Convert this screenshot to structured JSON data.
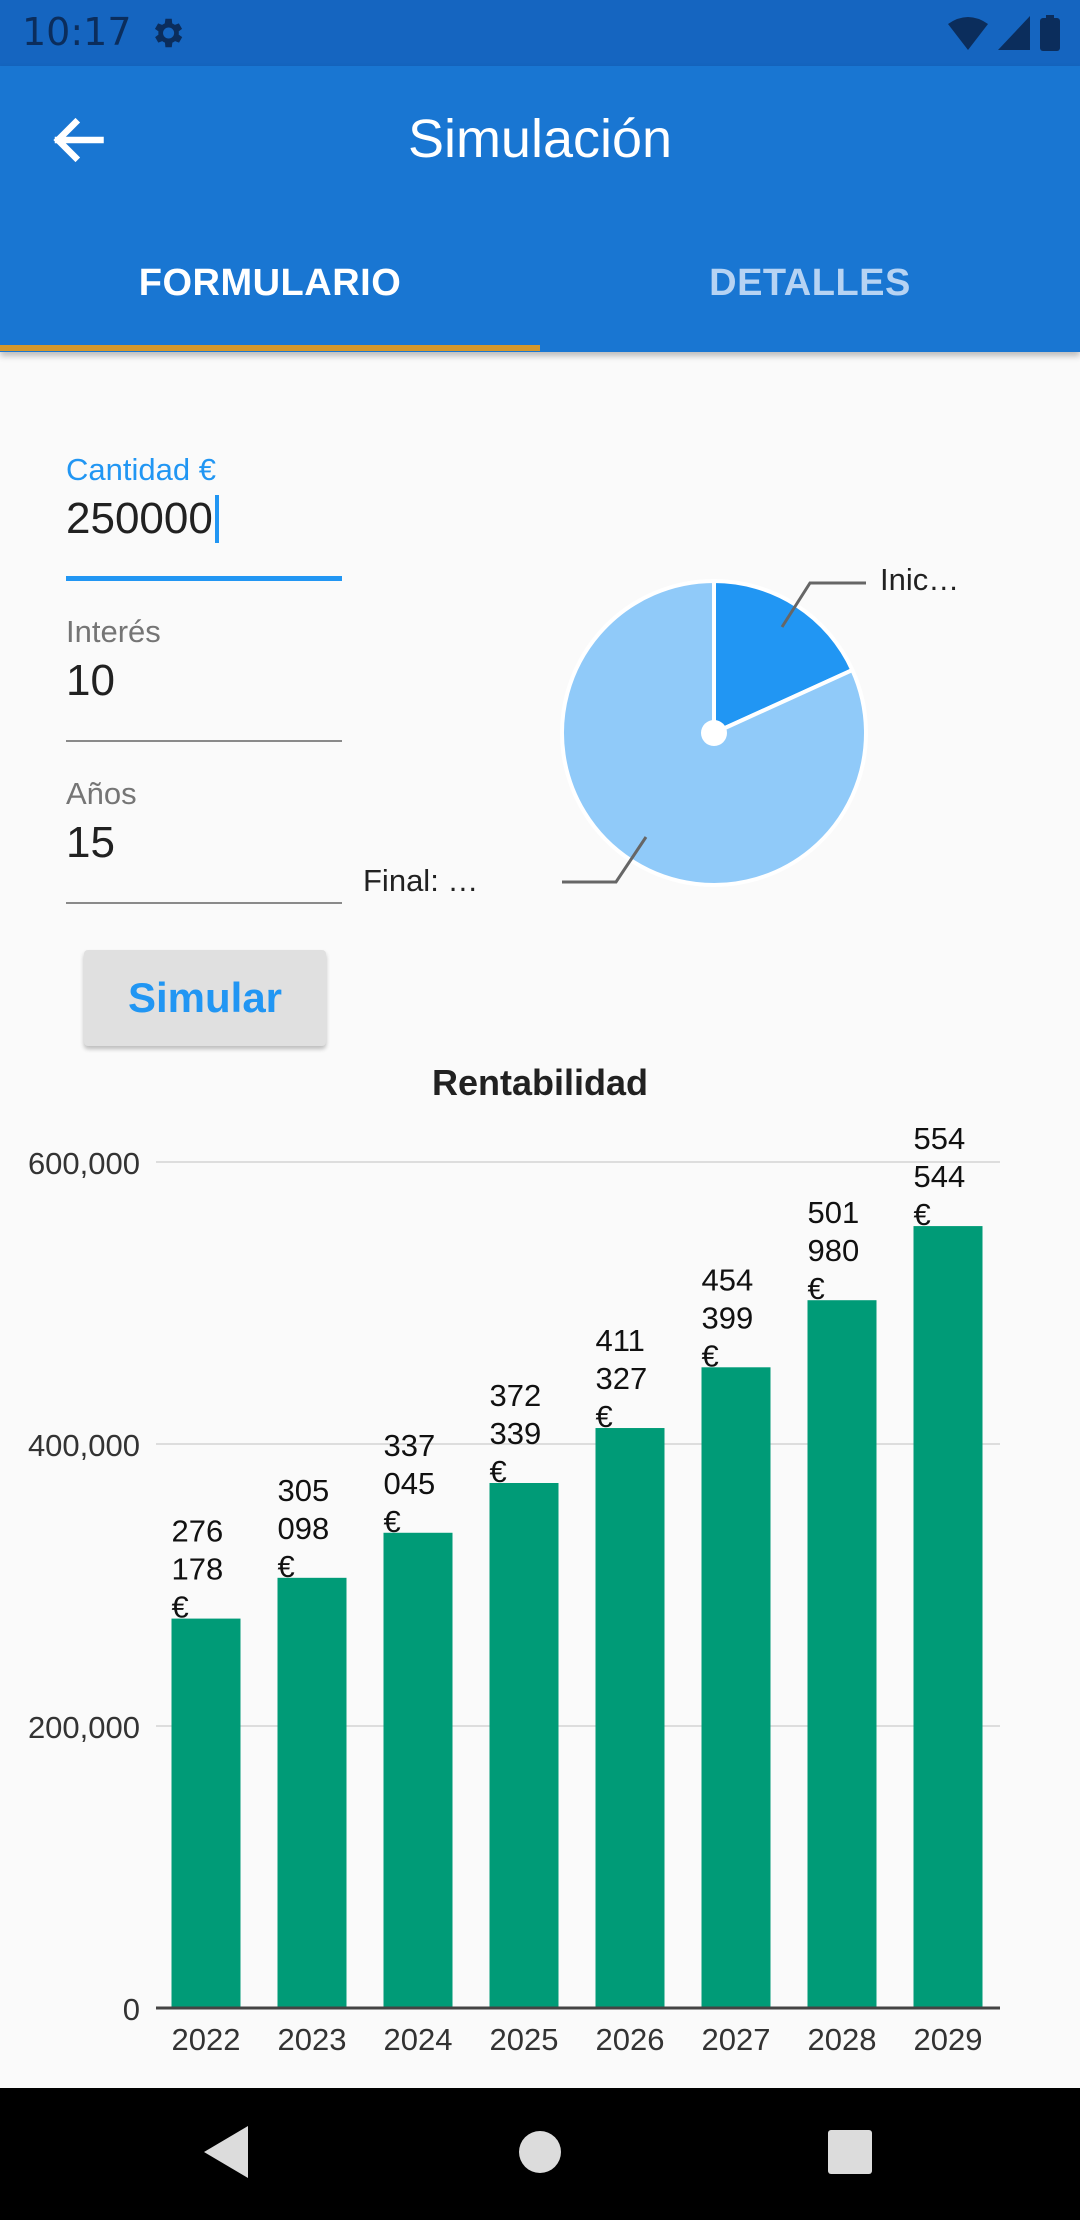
{
  "status_bar": {
    "time": "10:17"
  },
  "app_bar": {
    "title": "Simulación"
  },
  "tabs": [
    {
      "label": "FORMULARIO"
    },
    {
      "label": "DETALLES"
    }
  ],
  "form": {
    "cantidad": {
      "label": "Cantidad €",
      "value": "250000"
    },
    "interes": {
      "label": "Interés",
      "value": "10"
    },
    "anos": {
      "label": "Años",
      "value": "15"
    },
    "simular_label": "Simular"
  },
  "pie_chart": {
    "type": "pie",
    "slices": [
      {
        "label": "Inic…",
        "fraction": 0.182,
        "color": "#2196f3"
      },
      {
        "label": "Final: …",
        "fraction": 0.818,
        "color": "#90caf9"
      }
    ]
  },
  "chart_data": {
    "type": "bar",
    "title": "Rentabilidad",
    "categories": [
      "2022",
      "2023",
      "2024",
      "2025",
      "2026",
      "2027",
      "2028",
      "2029"
    ],
    "values": [
      276178,
      305098,
      337045,
      372339,
      411327,
      454399,
      501980,
      554544
    ],
    "data_labels": [
      [
        "276",
        "178",
        "€"
      ],
      [
        "305",
        "098",
        "€"
      ],
      [
        "337",
        "045",
        "€"
      ],
      [
        "372",
        "339",
        "€"
      ],
      [
        "411",
        "327",
        "€"
      ],
      [
        "454",
        "399",
        "€"
      ],
      [
        "501",
        "980",
        "€"
      ],
      [
        "554",
        "544",
        "€"
      ]
    ],
    "y_ticks": [
      "0",
      "200,000",
      "400,000",
      "600,000"
    ],
    "ylim": [
      0,
      600000
    ],
    "grid": true,
    "bar_color": "#009b77"
  }
}
